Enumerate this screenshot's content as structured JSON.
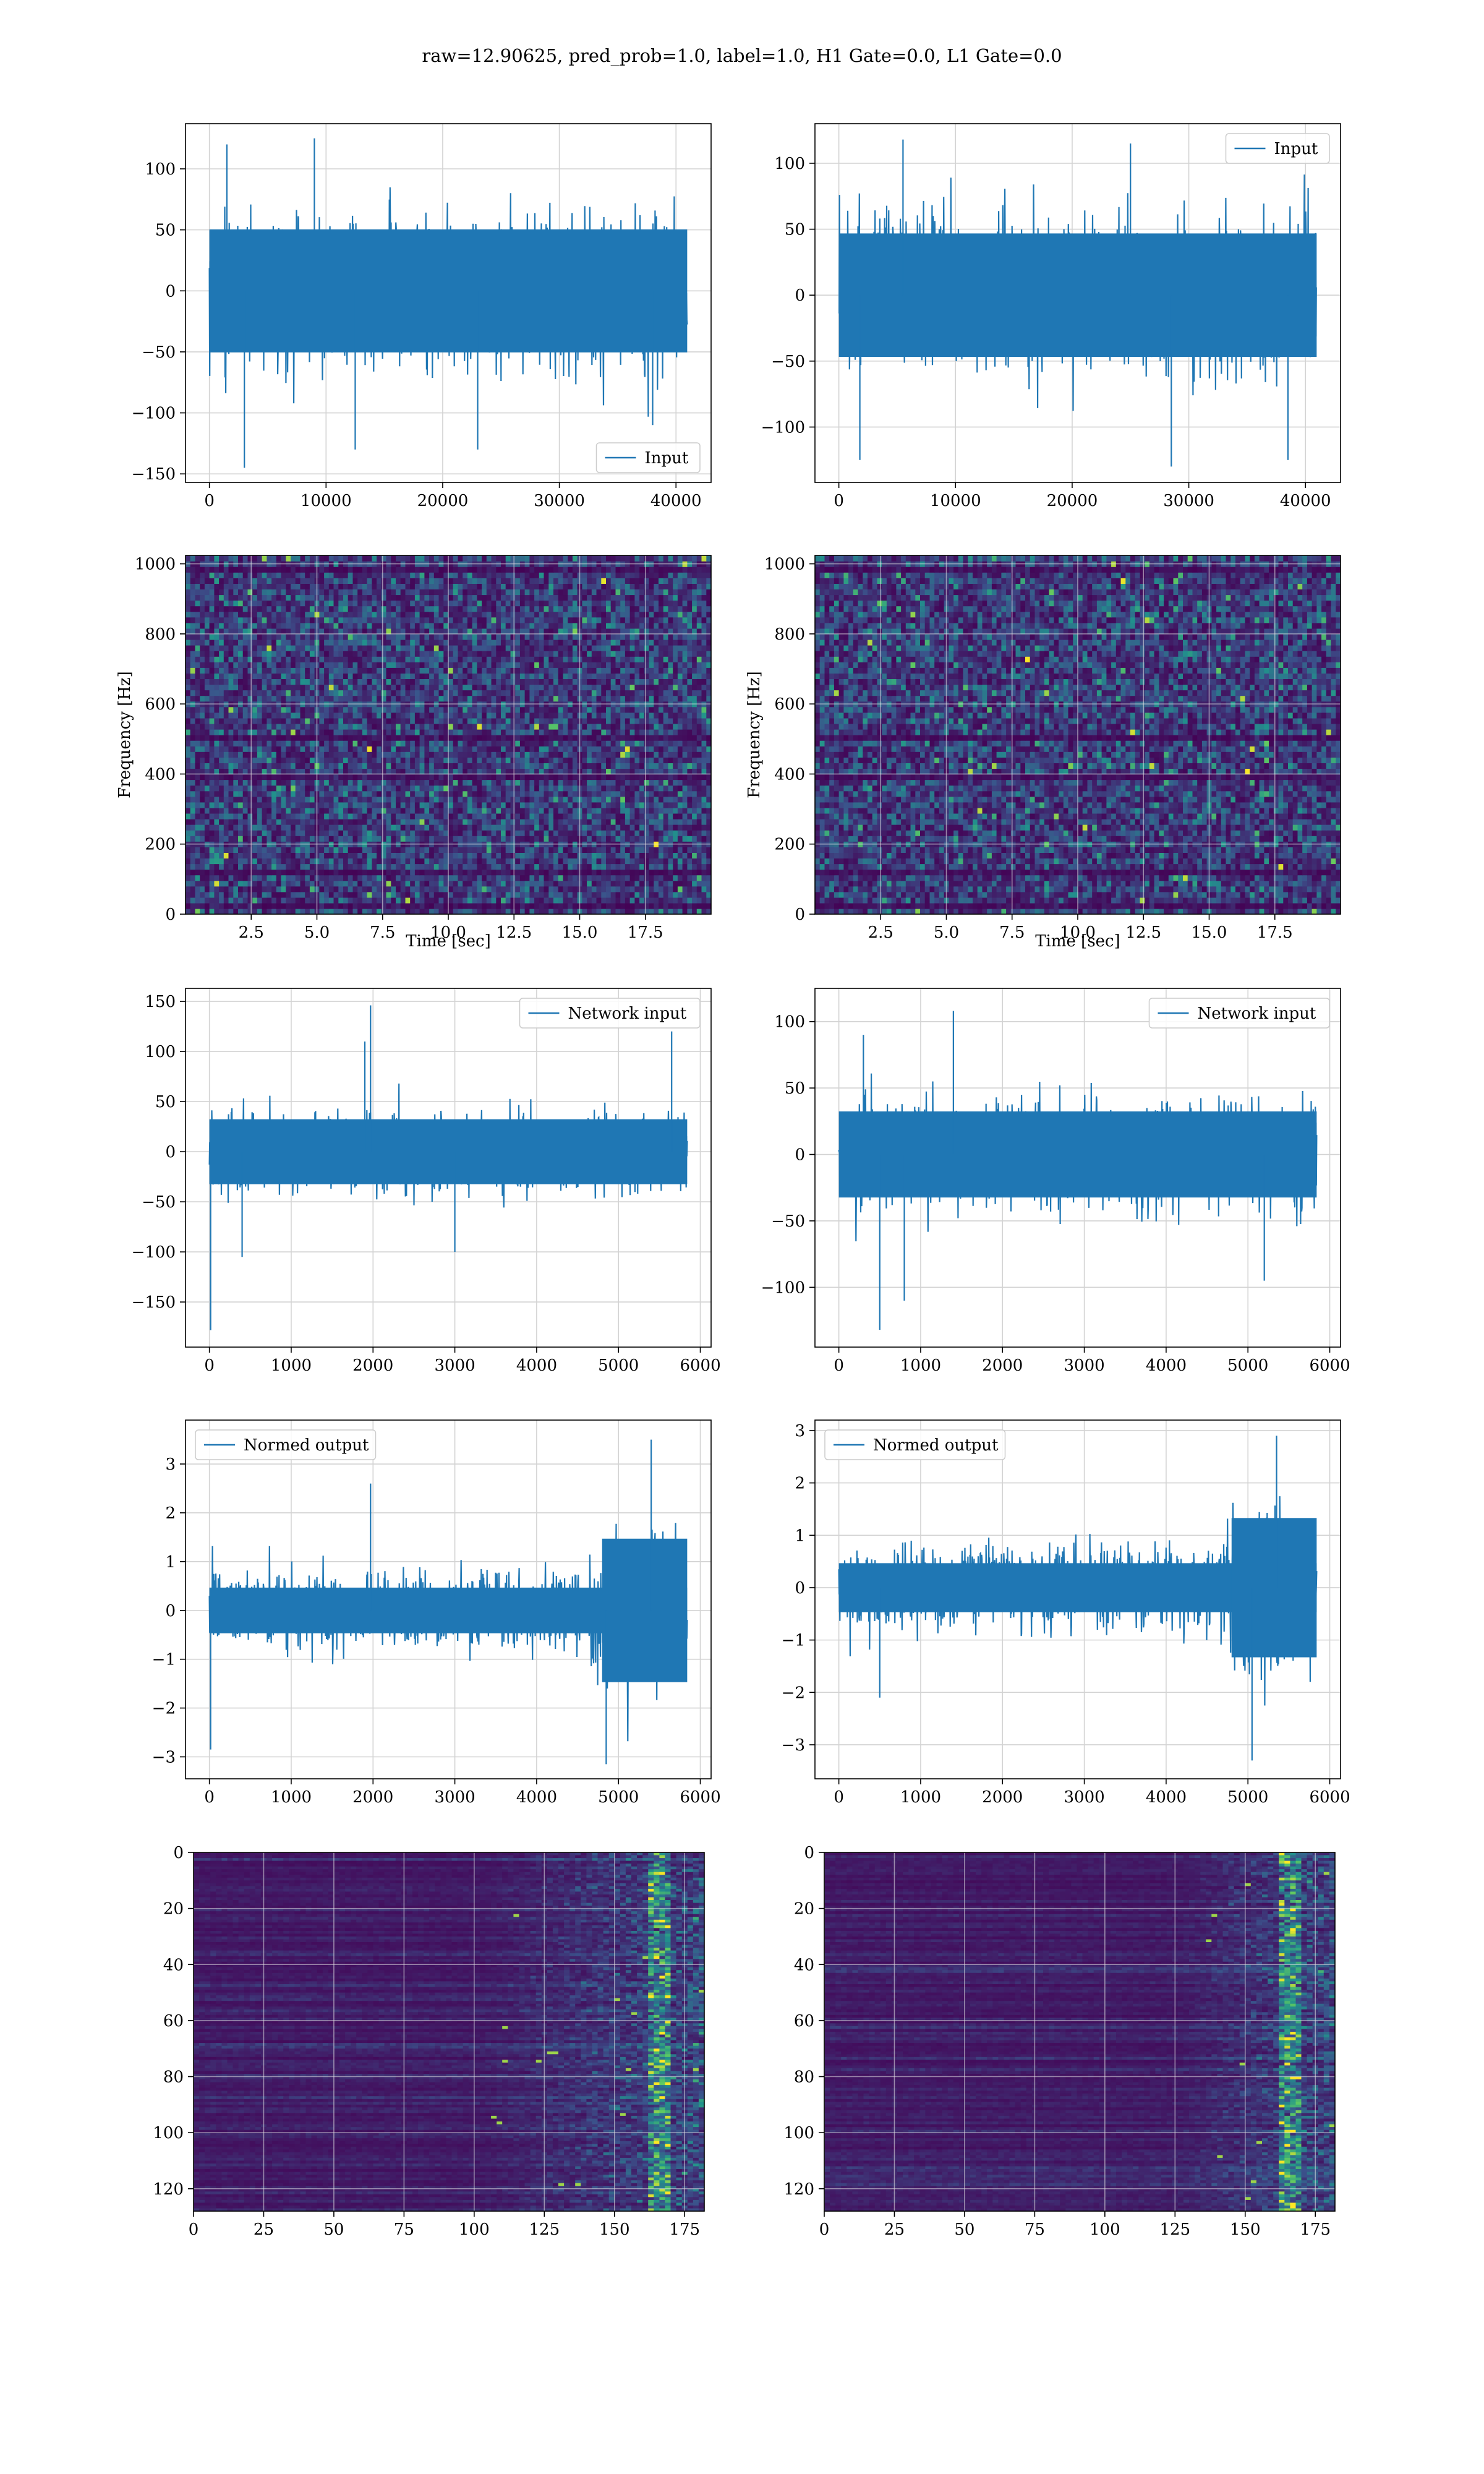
{
  "figure": {
    "suptitle": "raw=12.90625, pred_prob=1.0, label=1.0, H1 Gate=0.0, L1 Gate=0.0",
    "colors": {
      "line": "#1f77b4",
      "grid": "#d3d3d3",
      "heatmap_low": "#440154",
      "heatmap_mid": "#21918c",
      "heatmap_high": "#fde725"
    }
  },
  "chart_data": [
    {
      "id": "r1-left",
      "type": "line",
      "title": "",
      "xlabel": "",
      "ylabel": "",
      "legend": "Input",
      "legend_loc": "lower-right",
      "xlim": [
        -2048,
        43008
      ],
      "ylim": [
        -157,
        137
      ],
      "xticks": [
        0,
        10000,
        20000,
        30000,
        40000
      ],
      "xtick_labels": [
        "0",
        "10000",
        "20000",
        "30000",
        "40000"
      ],
      "yticks": [
        -150,
        -100,
        -50,
        0,
        50,
        100
      ],
      "ytick_labels": [
        "−150",
        "−100",
        "−50",
        "0",
        "50",
        "100"
      ],
      "series": [
        {
          "name": "Input",
          "n": 40960,
          "x_range": [
            0,
            40960
          ],
          "envelope": [
            -70,
            70
          ],
          "peak_max": 125,
          "peak_min": -145,
          "spikes": [
            [
              3000,
              -145
            ],
            [
              9000,
              125
            ],
            [
              12500,
              -130
            ],
            [
              1500,
              120
            ],
            [
              23000,
              -130
            ],
            [
              38000,
              -110
            ]
          ]
        }
      ],
      "grid": true
    },
    {
      "id": "r1-right",
      "type": "line",
      "title": "",
      "xlabel": "",
      "ylabel": "",
      "legend": "Input",
      "legend_loc": "upper-right",
      "xlim": [
        -2048,
        43008
      ],
      "ylim": [
        -142,
        130
      ],
      "xticks": [
        0,
        10000,
        20000,
        30000,
        40000
      ],
      "xtick_labels": [
        "0",
        "10000",
        "20000",
        "30000",
        "40000"
      ],
      "yticks": [
        -100,
        -50,
        0,
        50,
        100
      ],
      "ytick_labels": [
        "−100",
        "−50",
        "0",
        "50",
        "100"
      ],
      "series": [
        {
          "name": "Input",
          "n": 40960,
          "x_range": [
            0,
            40960
          ],
          "envelope": [
            -65,
            65
          ],
          "peak_max": 118,
          "peak_min": -132,
          "spikes": [
            [
              5500,
              118
            ],
            [
              25000,
              115
            ],
            [
              28500,
              -130
            ],
            [
              38500,
              -125
            ],
            [
              1800,
              -125
            ]
          ]
        }
      ],
      "grid": true
    },
    {
      "id": "r2-left",
      "type": "heatmap",
      "title": "",
      "xlabel": "Time [sec]",
      "ylabel": "Frequency [Hz]",
      "xlim": [
        0,
        20
      ],
      "ylim": [
        0,
        1024
      ],
      "xticks": [
        2.5,
        5.0,
        7.5,
        10.0,
        12.5,
        15.0,
        17.5
      ],
      "xtick_labels": [
        "2.5",
        "5.0",
        "7.5",
        "10.0",
        "12.5",
        "15.0",
        "17.5"
      ],
      "yticks": [
        0,
        200,
        400,
        600,
        800,
        1000
      ],
      "ytick_labels": [
        "0",
        "200",
        "400",
        "600",
        "800",
        "1000"
      ],
      "colormap": "viridis",
      "description_values": {
        "rows": 64,
        "cols": 110,
        "background_level": 0.15,
        "dark_band_freqs_hz": [
          28,
          120,
          395,
          500,
          990
        ]
      },
      "grid": true
    },
    {
      "id": "r2-right",
      "type": "heatmap",
      "title": "",
      "xlabel": "Time [sec]",
      "ylabel": "Frequency [Hz]",
      "xlim": [
        0,
        20
      ],
      "ylim": [
        0,
        1024
      ],
      "xticks": [
        2.5,
        5.0,
        7.5,
        10.0,
        12.5,
        15.0,
        17.5
      ],
      "xtick_labels": [
        "2.5",
        "5.0",
        "7.5",
        "10.0",
        "12.5",
        "15.0",
        "17.5"
      ],
      "yticks": [
        0,
        200,
        400,
        600,
        800,
        1000
      ],
      "ytick_labels": [
        "0",
        "200",
        "400",
        "600",
        "800",
        "1000"
      ],
      "colormap": "viridis",
      "description_values": {
        "rows": 64,
        "cols": 110,
        "background_level": 0.15,
        "dark_band_freqs_hz": [
          28,
          120,
          395,
          500,
          990
        ]
      },
      "grid": true
    },
    {
      "id": "r3-left",
      "type": "line",
      "title": "",
      "xlabel": "",
      "ylabel": "",
      "legend": "Network input",
      "legend_loc": "upper-right",
      "xlim": [
        -292,
        6132
      ],
      "ylim": [
        -195,
        163
      ],
      "xticks": [
        0,
        1000,
        2000,
        3000,
        4000,
        5000,
        6000
      ],
      "xtick_labels": [
        "0",
        "1000",
        "2000",
        "3000",
        "4000",
        "5000",
        "6000"
      ],
      "yticks": [
        -150,
        -100,
        -50,
        0,
        50,
        100,
        150
      ],
      "ytick_labels": [
        "−150",
        "−100",
        "−50",
        "0",
        "50",
        "100",
        "150"
      ],
      "series": [
        {
          "name": "Network input",
          "n": 5840,
          "x_range": [
            0,
            5840
          ],
          "envelope": [
            -45,
            45
          ],
          "peak_max": 146,
          "peak_min": -178,
          "spikes": [
            [
              15,
              -178
            ],
            [
              1970,
              146
            ],
            [
              1900,
              110
            ],
            [
              3000,
              -100
            ],
            [
              5650,
              120
            ],
            [
              400,
              -105
            ]
          ]
        }
      ],
      "grid": true
    },
    {
      "id": "r3-right",
      "type": "line",
      "title": "",
      "xlabel": "",
      "ylabel": "",
      "legend": "Network input",
      "legend_loc": "upper-right",
      "xlim": [
        -292,
        6132
      ],
      "ylim": [
        -145,
        125
      ],
      "xticks": [
        0,
        1000,
        2000,
        3000,
        4000,
        5000,
        6000
      ],
      "xtick_labels": [
        "0",
        "1000",
        "2000",
        "3000",
        "4000",
        "5000",
        "6000"
      ],
      "yticks": [
        -100,
        -50,
        0,
        50,
        100
      ],
      "ytick_labels": [
        "−100",
        "−50",
        "0",
        "50",
        "100"
      ],
      "series": [
        {
          "name": "Network input",
          "n": 5840,
          "x_range": [
            0,
            5840
          ],
          "envelope": [
            -45,
            45
          ],
          "peak_max": 108,
          "peak_min": -132,
          "spikes": [
            [
              500,
              -132
            ],
            [
              1400,
              108
            ],
            [
              800,
              -110
            ],
            [
              5200,
              -95
            ],
            [
              300,
              90
            ]
          ]
        }
      ],
      "grid": true
    },
    {
      "id": "r4-left",
      "type": "line",
      "title": "",
      "xlabel": "",
      "ylabel": "",
      "legend": "Normed output",
      "legend_loc": "upper-left",
      "xlim": [
        -292,
        6132
      ],
      "ylim": [
        -3.45,
        3.9
      ],
      "xticks": [
        0,
        1000,
        2000,
        3000,
        4000,
        5000,
        6000
      ],
      "xtick_labels": [
        "0",
        "1000",
        "2000",
        "3000",
        "4000",
        "5000",
        "6000"
      ],
      "yticks": [
        -3,
        -2,
        -1,
        0,
        1,
        2,
        3
      ],
      "ytick_labels": [
        "−3",
        "−2",
        "−1",
        "0",
        "1",
        "2",
        "3"
      ],
      "series": [
        {
          "name": "Normed output",
          "n": 5840,
          "x_range": [
            0,
            5840
          ],
          "envelope": [
            -0.85,
            0.85
          ],
          "late_burst": {
            "start": 4650,
            "end": 5840,
            "envelope": [
              -2.1,
              2.1
            ]
          },
          "peak_max": 3.5,
          "peak_min": -3.15,
          "spikes": [
            [
              15,
              -2.85
            ],
            [
              1970,
              2.6
            ],
            [
              5400,
              3.5
            ],
            [
              4850,
              -3.15
            ]
          ]
        }
      ],
      "grid": true
    },
    {
      "id": "r4-right",
      "type": "line",
      "title": "",
      "xlabel": "",
      "ylabel": "",
      "legend": "Normed output",
      "legend_loc": "upper-left",
      "xlim": [
        -292,
        6132
      ],
      "ylim": [
        -3.65,
        3.2
      ],
      "xticks": [
        0,
        1000,
        2000,
        3000,
        4000,
        5000,
        6000
      ],
      "xtick_labels": [
        "0",
        "1000",
        "2000",
        "3000",
        "4000",
        "5000",
        "6000"
      ],
      "yticks": [
        -3,
        -2,
        -1,
        0,
        1,
        2,
        3
      ],
      "ytick_labels": [
        "−3",
        "−2",
        "−1",
        "0",
        "1",
        "2",
        "3"
      ],
      "series": [
        {
          "name": "Normed output",
          "n": 5840,
          "x_range": [
            0,
            5840
          ],
          "envelope": [
            -0.85,
            0.85
          ],
          "late_burst": {
            "start": 4650,
            "end": 5840,
            "envelope": [
              -1.9,
              1.9
            ]
          },
          "peak_max": 2.9,
          "peak_min": -3.3,
          "spikes": [
            [
              500,
              -2.1
            ],
            [
              5050,
              -3.3
            ],
            [
              5350,
              2.9
            ]
          ]
        }
      ],
      "grid": true
    },
    {
      "id": "r5-left",
      "type": "heatmap",
      "title": "",
      "xlabel": "",
      "ylabel": "",
      "xlim": [
        0,
        182
      ],
      "ylim": [
        128,
        0
      ],
      "xticks": [
        0,
        25,
        50,
        75,
        100,
        125,
        150,
        175
      ],
      "xtick_labels": [
        "0",
        "25",
        "50",
        "75",
        "100",
        "125",
        "150",
        "175"
      ],
      "yticks": [
        0,
        20,
        40,
        60,
        80,
        100,
        120
      ],
      "ytick_labels": [
        "0",
        "20",
        "40",
        "60",
        "80",
        "100",
        "120"
      ],
      "colormap": "viridis",
      "description_values": {
        "rows": 128,
        "cols": 182,
        "activity_onset_col": 102,
        "hot_column": 165
      },
      "grid": true
    },
    {
      "id": "r5-right",
      "type": "heatmap",
      "title": "",
      "xlabel": "",
      "ylabel": "",
      "xlim": [
        0,
        182
      ],
      "ylim": [
        128,
        0
      ],
      "xticks": [
        0,
        25,
        50,
        75,
        100,
        125,
        150,
        175
      ],
      "xtick_labels": [
        "0",
        "25",
        "50",
        "75",
        "100",
        "125",
        "150",
        "175"
      ],
      "yticks": [
        0,
        20,
        40,
        60,
        80,
        100,
        120
      ],
      "ytick_labels": [
        "0",
        "20",
        "40",
        "60",
        "80",
        "100",
        "120"
      ],
      "colormap": "viridis",
      "description_values": {
        "rows": 128,
        "cols": 182,
        "activity_onset_col": 125,
        "hot_column": 165
      },
      "grid": true
    }
  ]
}
